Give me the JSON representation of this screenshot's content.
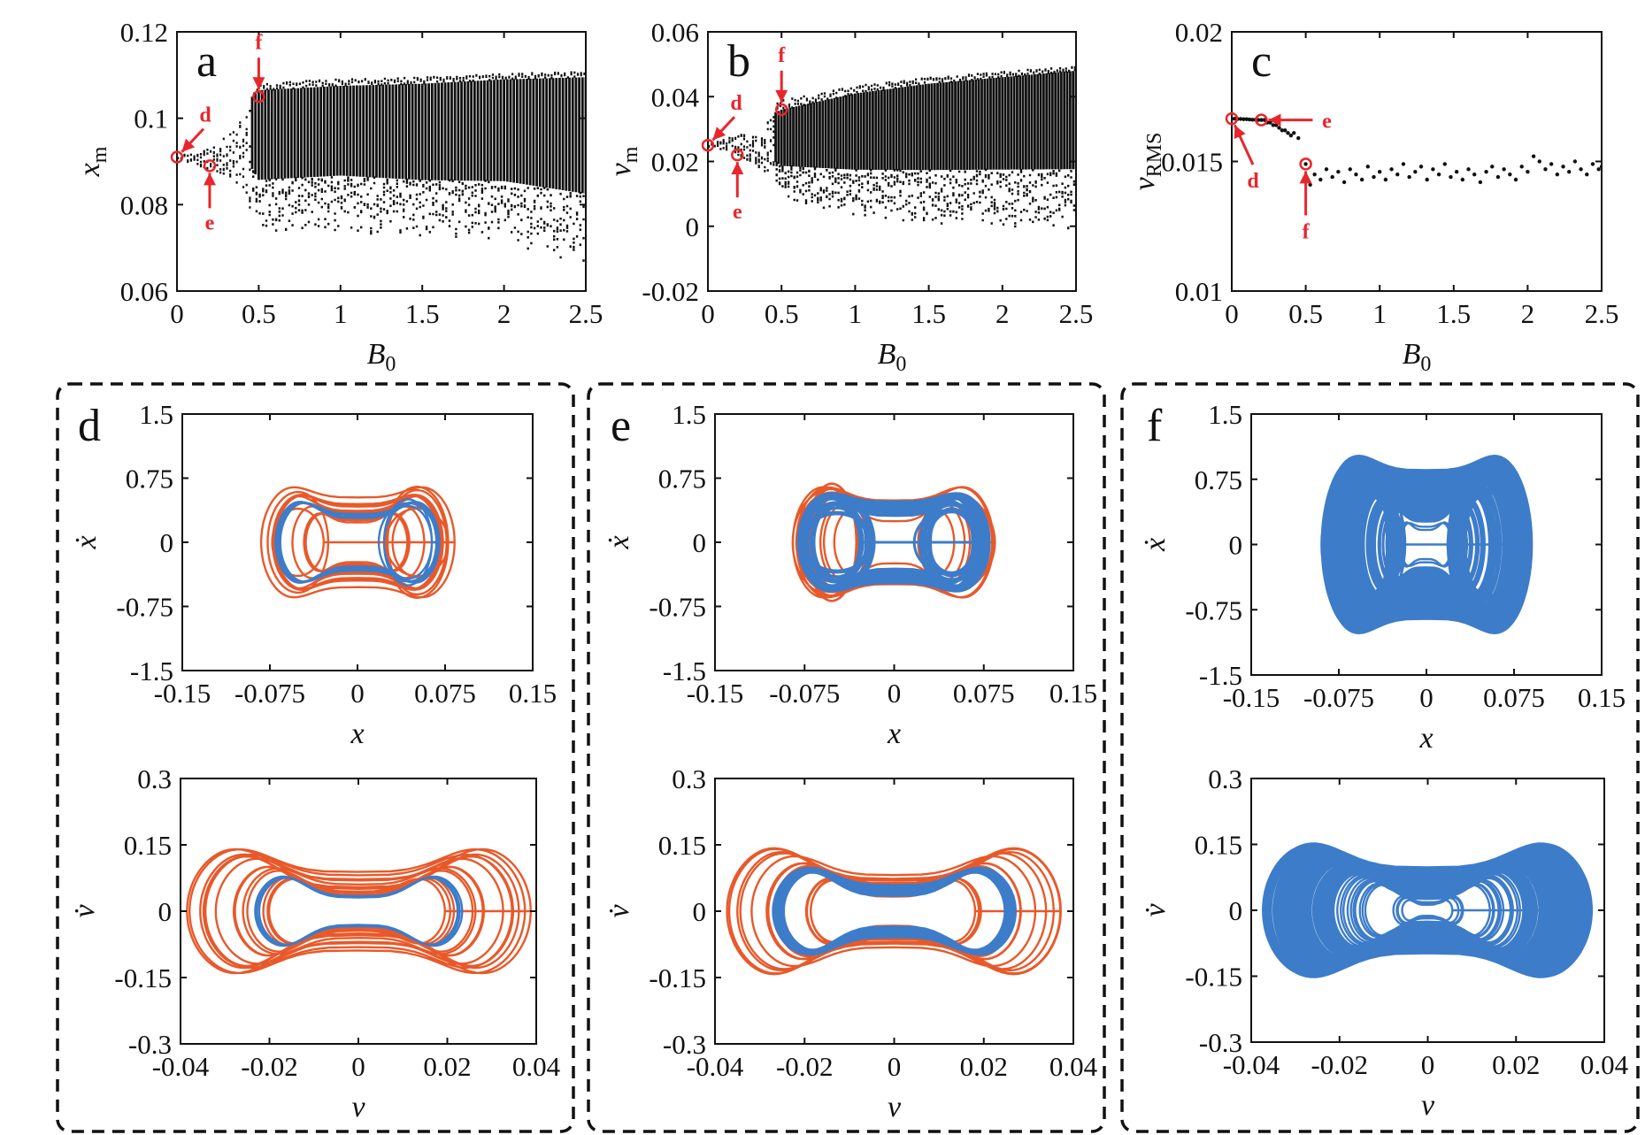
{
  "colors": {
    "orange": "#e8592a",
    "blue": "#3d7cc9",
    "black": "#111111",
    "marker": "#e8262c"
  },
  "chart_data": [
    {
      "id": "a",
      "type": "scatter",
      "panel_label": "a",
      "xlabel": "B",
      "xlabel_sub": "0",
      "ylabel": "x",
      "ylabel_sub": "m",
      "xlim": [
        0,
        2.5
      ],
      "ylim": [
        0.06,
        0.12
      ],
      "xticks": [
        "0",
        "0.5",
        "1",
        "1.5",
        "2",
        "2.5"
      ],
      "yticks": [
        "0.06",
        "0.08",
        "0.1",
        "0.12"
      ],
      "band": [
        {
          "B": 0.0,
          "lo": 0.0905,
          "hi": 0.0915
        },
        {
          "B": 0.2,
          "lo": 0.088,
          "hi": 0.093
        },
        {
          "B": 0.34,
          "lo": 0.086,
          "hi": 0.097
        },
        {
          "B": 0.46,
          "lo": 0.078,
          "hi": 0.105
        },
        {
          "B": 0.5,
          "lo": 0.073,
          "hi": 0.1065
        },
        {
          "B": 1.0,
          "lo": 0.074,
          "hi": 0.1075
        },
        {
          "B": 1.5,
          "lo": 0.072,
          "hi": 0.108
        },
        {
          "B": 2.0,
          "lo": 0.071,
          "hi": 0.109
        },
        {
          "B": 2.5,
          "lo": 0.066,
          "hi": 0.1095
        }
      ],
      "markers": [
        {
          "label": "d",
          "B": 0.0,
          "y": 0.091
        },
        {
          "label": "e",
          "B": 0.2,
          "y": 0.089
        },
        {
          "label": "f",
          "B": 0.5,
          "y": 0.105
        }
      ]
    },
    {
      "id": "b",
      "type": "scatter",
      "panel_label": "b",
      "xlabel": "B",
      "xlabel_sub": "0",
      "ylabel": "v",
      "ylabel_sub": "m",
      "xlim": [
        0,
        2.5
      ],
      "ylim": [
        -0.02,
        0.06
      ],
      "xticks": [
        "0",
        "0.5",
        "1",
        "1.5",
        "2",
        "2.5"
      ],
      "yticks": [
        "-0.02",
        "0",
        "0.02",
        "0.04",
        "0.06"
      ],
      "band": [
        {
          "B": 0.0,
          "lo": 0.0245,
          "hi": 0.0255
        },
        {
          "B": 0.2,
          "lo": 0.022,
          "hi": 0.028
        },
        {
          "B": 0.35,
          "lo": 0.018,
          "hi": 0.031
        },
        {
          "B": 0.45,
          "lo": 0.011,
          "hi": 0.035
        },
        {
          "B": 0.5,
          "lo": 0.008,
          "hi": 0.036
        },
        {
          "B": 1.0,
          "lo": 0.003,
          "hi": 0.041
        },
        {
          "B": 1.5,
          "lo": 0.001,
          "hi": 0.044
        },
        {
          "B": 2.0,
          "lo": 0.0,
          "hi": 0.046
        },
        {
          "B": 2.5,
          "lo": -0.001,
          "hi": 0.048
        }
      ],
      "markers": [
        {
          "label": "d",
          "B": 0.0,
          "y": 0.025
        },
        {
          "label": "e",
          "B": 0.2,
          "y": 0.022
        },
        {
          "label": "f",
          "B": 0.5,
          "y": 0.036
        }
      ]
    },
    {
      "id": "c",
      "type": "scatter",
      "panel_label": "c",
      "xlabel": "B",
      "xlabel_sub": "0",
      "ylabel": "v",
      "ylabel_sub": "RMS",
      "xlim": [
        0,
        2.5
      ],
      "ylim": [
        0.01,
        0.02
      ],
      "xticks": [
        "0",
        "0.5",
        "1",
        "1.5",
        "2",
        "2.5"
      ],
      "yticks": [
        "0.01",
        "0.015",
        "0.02"
      ],
      "points": [
        [
          0.0,
          0.01665
        ],
        [
          0.02,
          0.01665
        ],
        [
          0.04,
          0.01664
        ],
        [
          0.06,
          0.01664
        ],
        [
          0.08,
          0.01663
        ],
        [
          0.1,
          0.01663
        ],
        [
          0.12,
          0.01662
        ],
        [
          0.14,
          0.01661
        ],
        [
          0.16,
          0.01661
        ],
        [
          0.18,
          0.0166
        ],
        [
          0.2,
          0.0166
        ],
        [
          0.22,
          0.0166
        ],
        [
          0.24,
          0.0165
        ],
        [
          0.26,
          0.0165
        ],
        [
          0.28,
          0.0164
        ],
        [
          0.3,
          0.0164
        ],
        [
          0.32,
          0.0163
        ],
        [
          0.34,
          0.0162
        ],
        [
          0.36,
          0.0162
        ],
        [
          0.38,
          0.0161
        ],
        [
          0.4,
          0.016
        ],
        [
          0.42,
          0.0161
        ],
        [
          0.45,
          0.0159
        ],
        [
          0.5,
          0.0149
        ],
        [
          0.53,
          0.0141
        ],
        [
          0.56,
          0.0145
        ],
        [
          0.6,
          0.0143
        ],
        [
          0.64,
          0.0147
        ],
        [
          0.68,
          0.0144
        ],
        [
          0.72,
          0.0146
        ],
        [
          0.76,
          0.0142
        ],
        [
          0.8,
          0.0147
        ],
        [
          0.84,
          0.0145
        ],
        [
          0.88,
          0.0143
        ],
        [
          0.92,
          0.0148
        ],
        [
          0.96,
          0.0144
        ],
        [
          1.0,
          0.0146
        ],
        [
          1.04,
          0.0143
        ],
        [
          1.08,
          0.0147
        ],
        [
          1.12,
          0.0145
        ],
        [
          1.16,
          0.0149
        ],
        [
          1.2,
          0.0144
        ],
        [
          1.24,
          0.0146
        ],
        [
          1.28,
          0.0148
        ],
        [
          1.32,
          0.0143
        ],
        [
          1.36,
          0.0147
        ],
        [
          1.4,
          0.0145
        ],
        [
          1.44,
          0.0149
        ],
        [
          1.48,
          0.0144
        ],
        [
          1.52,
          0.0146
        ],
        [
          1.56,
          0.0143
        ],
        [
          1.6,
          0.0147
        ],
        [
          1.64,
          0.0145
        ],
        [
          1.68,
          0.0142
        ],
        [
          1.72,
          0.0146
        ],
        [
          1.76,
          0.0148
        ],
        [
          1.8,
          0.0144
        ],
        [
          1.84,
          0.0147
        ],
        [
          1.88,
          0.0145
        ],
        [
          1.92,
          0.0143
        ],
        [
          1.96,
          0.0148
        ],
        [
          2.0,
          0.0146
        ],
        [
          2.04,
          0.0152
        ],
        [
          2.08,
          0.015
        ],
        [
          2.12,
          0.0147
        ],
        [
          2.16,
          0.0149
        ],
        [
          2.2,
          0.0145
        ],
        [
          2.24,
          0.0148
        ],
        [
          2.28,
          0.0146
        ],
        [
          2.32,
          0.015
        ],
        [
          2.36,
          0.0147
        ],
        [
          2.4,
          0.0145
        ],
        [
          2.44,
          0.0149
        ],
        [
          2.48,
          0.0147
        ],
        [
          2.5,
          0.0148
        ]
      ],
      "markers": [
        {
          "label": "d",
          "B": 0.0,
          "y": 0.01665
        },
        {
          "label": "e",
          "B": 0.2,
          "y": 0.0166
        },
        {
          "label": "f",
          "B": 0.5,
          "y": 0.0149
        }
      ]
    },
    {
      "id": "d1",
      "type": "line",
      "panel_label": "d",
      "xlabel": "x",
      "ylabel": "ẋ",
      "xlim": [
        -0.15,
        0.15
      ],
      "ylim": [
        -1.5,
        1.5
      ],
      "xticks": [
        "-0.15",
        "-0.075",
        "0",
        "0.075",
        "0.15"
      ],
      "yticks": [
        "-1.5",
        "-0.75",
        "0",
        "0.75",
        "1.5"
      ],
      "series": [
        {
          "color": "orange",
          "kind": "x-transient",
          "extent": 0.085,
          "amp": 0.83,
          "loops": 9
        },
        {
          "color": "blue",
          "kind": "x-attractor",
          "extent": 0.072,
          "amp": 0.64,
          "loops": 4
        }
      ]
    },
    {
      "id": "d2",
      "type": "line",
      "xlabel": "v",
      "ylabel": "v̇",
      "xlim": [
        -0.04,
        0.04
      ],
      "ylim": [
        -0.3,
        0.3
      ],
      "xticks": [
        "-0.04",
        "-0.02",
        "0",
        "0.02",
        "0.04"
      ],
      "yticks": [
        "-0.3",
        "-0.15",
        "0",
        "0.15",
        "0.3"
      ],
      "series": [
        {
          "color": "orange",
          "kind": "v-transient",
          "extent": 0.039,
          "amp": 0.19,
          "loops": 14
        },
        {
          "color": "blue",
          "kind": "v-attractor",
          "extent": 0.024,
          "amp": 0.11,
          "loops": 4
        }
      ]
    },
    {
      "id": "e1",
      "type": "line",
      "panel_label": "e",
      "xlabel": "x",
      "ylabel": "ẋ",
      "xlim": [
        -0.15,
        0.15
      ],
      "ylim": [
        -1.5,
        1.5
      ],
      "xticks": [
        "-0.15",
        "-0.075",
        "0",
        "0.075",
        "0.15"
      ],
      "yticks": [
        "-1.5",
        "-0.75",
        "0",
        "0.75",
        "1.5"
      ],
      "series": [
        {
          "color": "orange",
          "kind": "x-transient",
          "extent": 0.087,
          "amp": 0.87,
          "loops": 9
        },
        {
          "color": "blue",
          "kind": "x-attractor",
          "extent": 0.08,
          "amp": 0.72,
          "loops": 40
        }
      ]
    },
    {
      "id": "e2",
      "type": "line",
      "xlabel": "v",
      "ylabel": "v̇",
      "xlim": [
        -0.04,
        0.04
      ],
      "ylim": [
        -0.3,
        0.3
      ],
      "xticks": [
        "-0.04",
        "-0.02",
        "0",
        "0.02",
        "0.04"
      ],
      "yticks": [
        "-0.3",
        "-0.15",
        "0",
        "0.15",
        "0.3"
      ],
      "series": [
        {
          "color": "orange",
          "kind": "v-transient",
          "extent": 0.039,
          "amp": 0.2,
          "loops": 14
        },
        {
          "color": "blue",
          "kind": "v-attractor",
          "extent": 0.027,
          "amp": 0.13,
          "loops": 40
        }
      ]
    },
    {
      "id": "f1",
      "type": "line",
      "panel_label": "f",
      "xlabel": "x",
      "ylabel": "ẋ",
      "xlim": [
        -0.15,
        0.15
      ],
      "ylim": [
        -1.5,
        1.5
      ],
      "xticks": [
        "-0.15",
        "-0.075",
        "0",
        "0.075",
        "0.15"
      ],
      "yticks": [
        "-1.5",
        "-0.75",
        "0",
        "0.75",
        "1.5"
      ],
      "series": [
        {
          "color": "blue",
          "kind": "x-chaotic",
          "extent": 0.09,
          "amp": 1.28,
          "loops": 120
        }
      ]
    },
    {
      "id": "f2",
      "type": "line",
      "xlabel": "v",
      "ylabel": "v̇",
      "xlim": [
        -0.04,
        0.04
      ],
      "ylim": [
        -0.3,
        0.3
      ],
      "xticks": [
        "-0.04",
        "-0.02",
        "0",
        "0.02",
        "0.04"
      ],
      "yticks": [
        "-0.3",
        "-0.15",
        "0",
        "0.15",
        "0.3"
      ],
      "series": [
        {
          "color": "blue",
          "kind": "v-chaotic",
          "extent": 0.037,
          "amp": 0.2,
          "loops": 120
        }
      ]
    }
  ]
}
